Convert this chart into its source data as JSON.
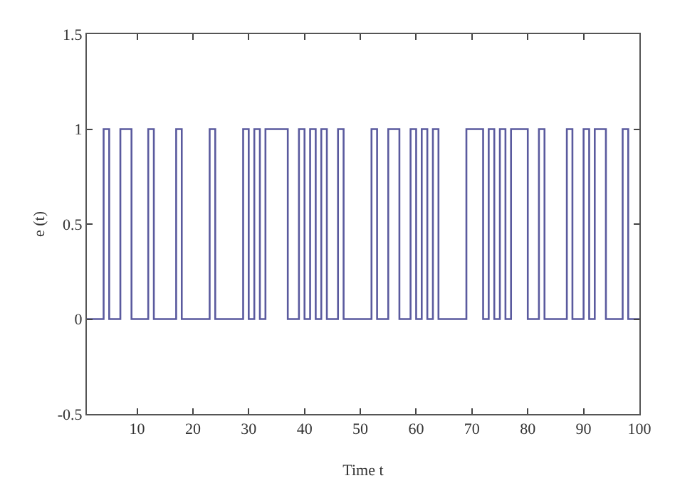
{
  "chart_data": {
    "type": "step",
    "xlabel": "Time t",
    "ylabel": "e (t)",
    "x": [
      1,
      4,
      5,
      7,
      9,
      12,
      13,
      17,
      18,
      23,
      24,
      29,
      30,
      31,
      32,
      33,
      37,
      39,
      40,
      41,
      42,
      43,
      44,
      46,
      47,
      52,
      53,
      55,
      57,
      59,
      60,
      61,
      62,
      63,
      64,
      69,
      72,
      73,
      74,
      75,
      76,
      77,
      80,
      82,
      83,
      87,
      88,
      90,
      91,
      92,
      94,
      97,
      98,
      100
    ],
    "values": [
      0,
      1,
      0,
      1,
      0,
      1,
      0,
      1,
      0,
      1,
      0,
      1,
      0,
      1,
      0,
      1,
      0,
      1,
      0,
      1,
      0,
      1,
      0,
      1,
      0,
      1,
      0,
      1,
      0,
      1,
      0,
      1,
      0,
      1,
      0,
      1,
      0,
      1,
      0,
      1,
      0,
      1,
      0,
      1,
      0,
      1,
      0,
      1,
      0,
      1,
      0,
      1,
      0,
      0
    ],
    "color": "#5a5a9e",
    "xlim": [
      1,
      100
    ],
    "xticks": [
      10,
      20,
      30,
      40,
      50,
      60,
      70,
      80,
      90,
      100
    ],
    "ylim": [
      -0.5,
      1.5
    ],
    "yticks": [
      -0.5,
      0,
      0.5,
      1,
      1.5
    ],
    "grid": false
  }
}
